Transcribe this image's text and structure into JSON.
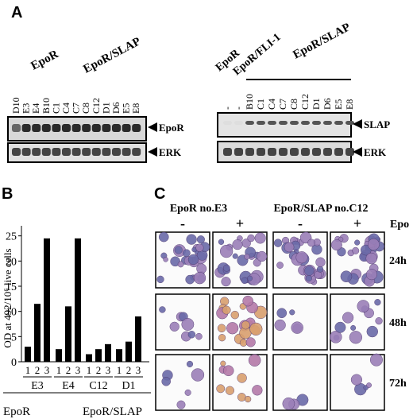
{
  "panel_a": {
    "letter": "A",
    "left_blot": {
      "groups": [
        "EpoR",
        "EpoR/SLAP"
      ],
      "lanes": [
        "D10",
        "E3",
        "E4",
        "B10",
        "C1",
        "C4",
        "C7",
        "C8",
        "C12",
        "D1",
        "D6",
        "E5",
        "E8"
      ],
      "bands": [
        "EpoR",
        "ERK"
      ]
    },
    "right_blot": {
      "groups": [
        "EpoR",
        "EpoR/FLI-1",
        "EpoR/SLAP"
      ],
      "lanes": [
        "-",
        "-",
        "B10",
        "C1",
        "C4",
        "C7",
        "C8",
        "C12",
        "D1",
        "D6",
        "E5",
        "E8"
      ],
      "bands": [
        "SLAP",
        "ERK"
      ]
    }
  },
  "panel_b": {
    "letter": "B",
    "subgroups": [
      "E3",
      "E4",
      "C12",
      "D1"
    ],
    "groups": [
      "EpoR",
      "EpoR/SLAP"
    ]
  },
  "chart_data": {
    "type": "bar",
    "ylabel": "OD at 492/10⁶ live cells",
    "categories": [
      "1",
      "2",
      "3",
      "1",
      "2",
      "3",
      "1",
      "2",
      "3",
      "1",
      "2",
      "3"
    ],
    "values": [
      3,
      11.5,
      24.5,
      2.5,
      11,
      24.5,
      1.5,
      2.5,
      3.5,
      2.5,
      4,
      9
    ],
    "color": "#000000",
    "ylim": [
      0,
      27
    ],
    "yticks": [
      0,
      5,
      10,
      15,
      20,
      25
    ],
    "grid": false
  },
  "panel_c": {
    "letter": "C",
    "columns": [
      "EpoR no.E3",
      "EpoR/SLAP no.C12"
    ],
    "signs": [
      "-",
      "+",
      "-",
      "+"
    ],
    "treatment": "Epo",
    "rows": [
      "24h",
      "48h",
      "72h"
    ]
  }
}
